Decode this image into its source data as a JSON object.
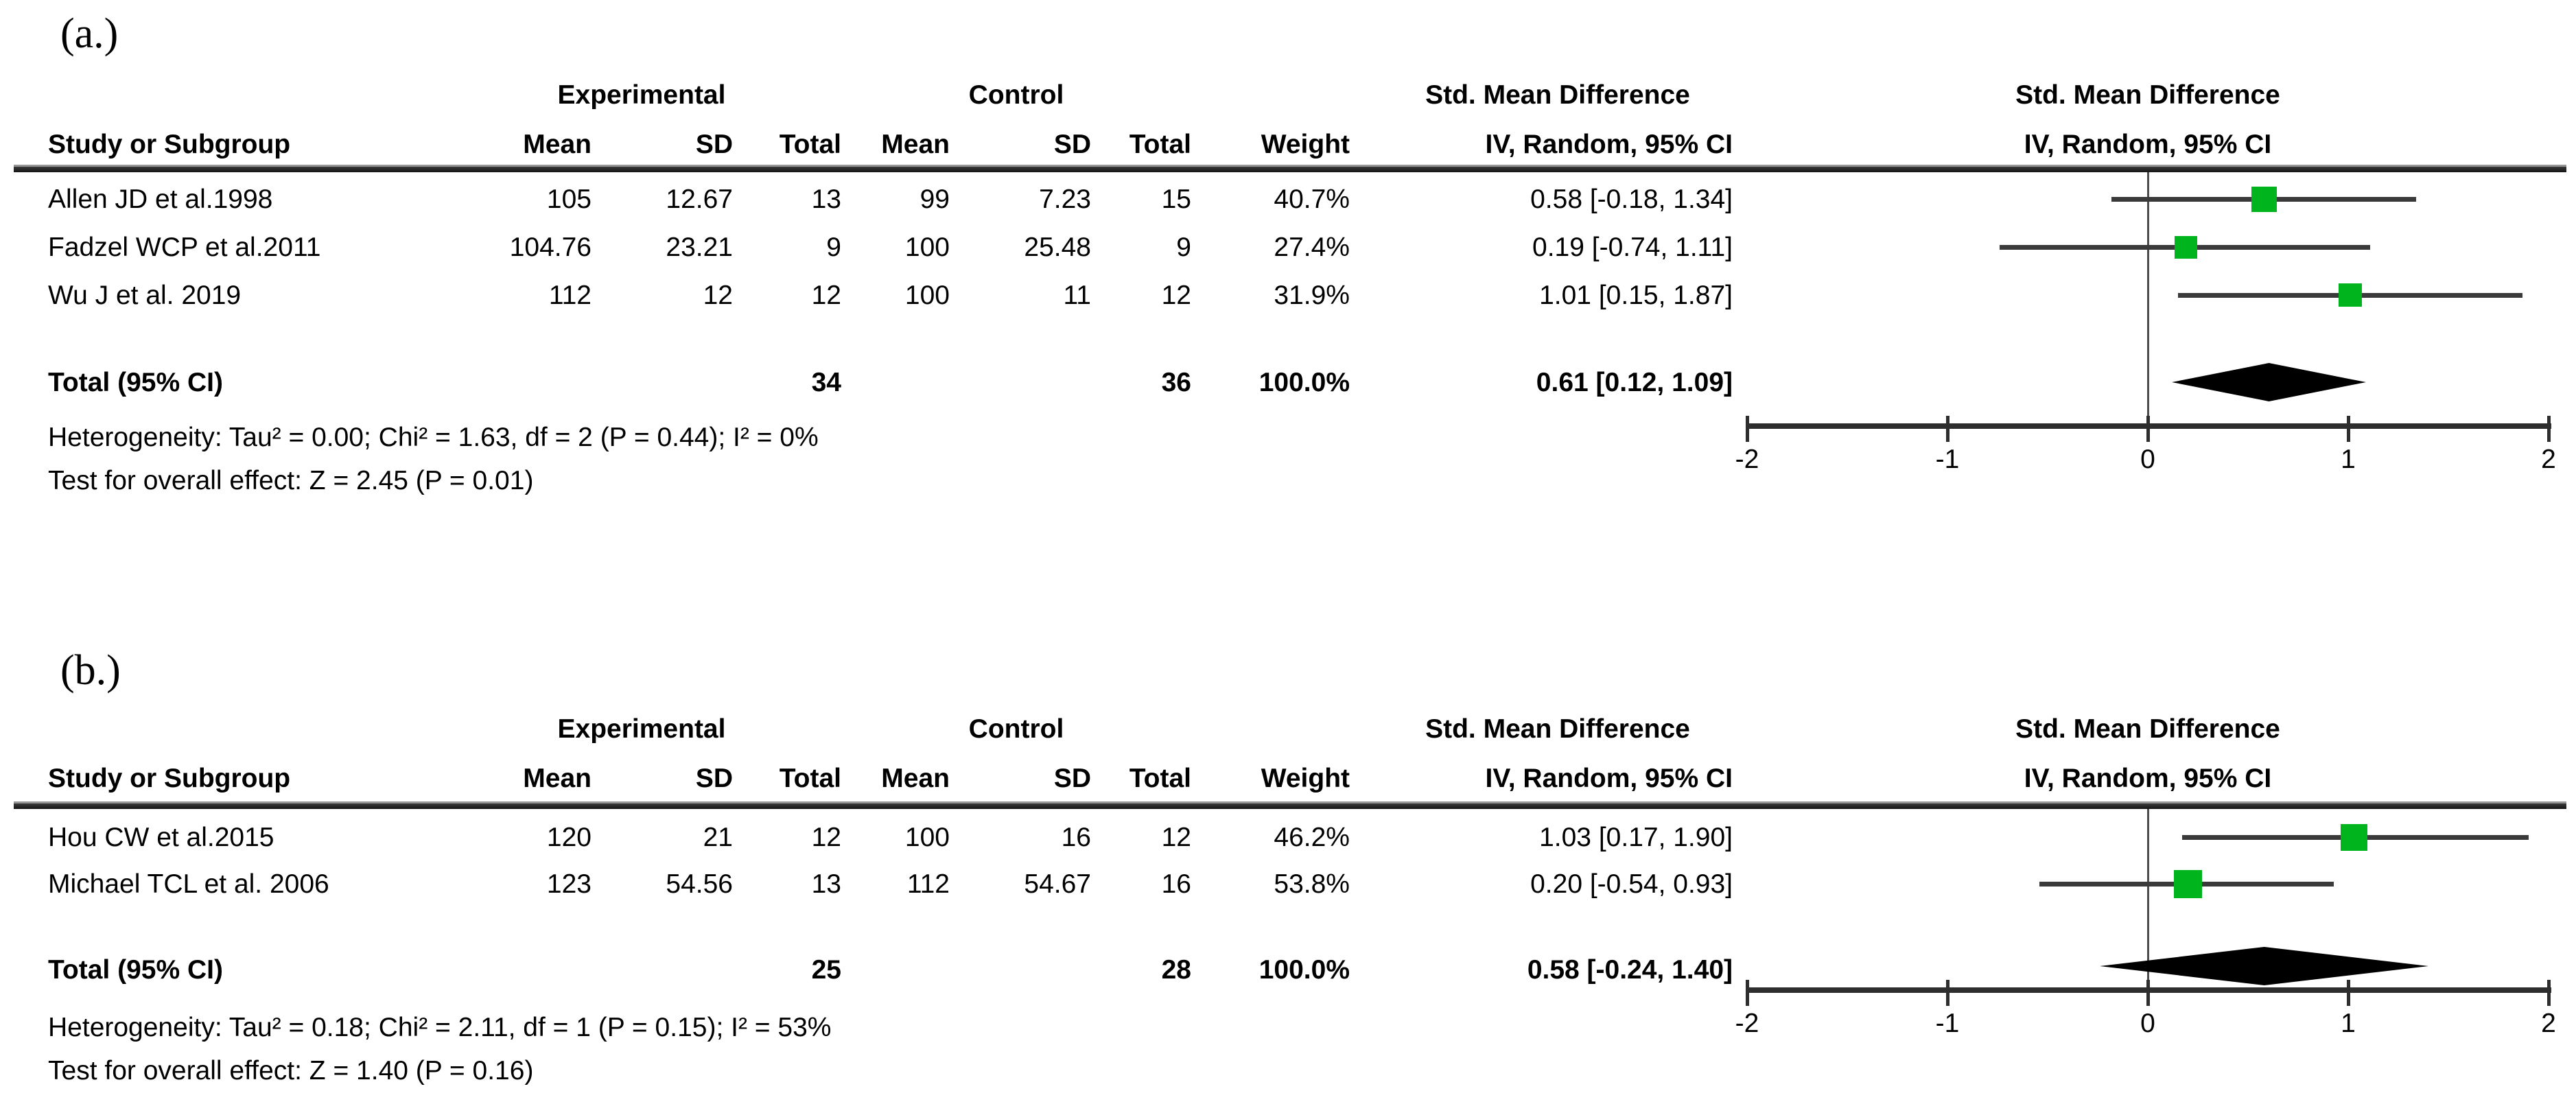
{
  "columns": {
    "study": "Study or Subgroup",
    "mean": "Mean",
    "sd": "SD",
    "total": "Total",
    "weight": "Weight",
    "iv": "IV, Random, 95% CI",
    "experimental": "Experimental",
    "control": "Control",
    "smd": "Std. Mean Difference"
  },
  "axis_ticks": [
    "-2",
    "-1",
    "0",
    "1",
    "2"
  ],
  "colors": {
    "square_green": "#00b41d",
    "diamond_black": "#000000",
    "axis_gray": "#2e2e2e"
  },
  "panels": [
    {
      "label": "(a.)",
      "studies": [
        {
          "name": "Allen JD et al.1998",
          "exp_mean": "105",
          "exp_sd": "12.67",
          "exp_total": "13",
          "ctl_mean": "99",
          "ctl_sd": "7.23",
          "ctl_total": "15",
          "weight": "40.7%",
          "ci_text": "0.58 [-0.18, 1.34]"
        },
        {
          "name": "Fadzel WCP et al.2011",
          "exp_mean": "104.76",
          "exp_sd": "23.21",
          "exp_total": "9",
          "ctl_mean": "100",
          "ctl_sd": "25.48",
          "ctl_total": "9",
          "weight": "27.4%",
          "ci_text": "0.19 [-0.74, 1.11]"
        },
        {
          "name": "Wu J et al. 2019",
          "exp_mean": "112",
          "exp_sd": "12",
          "exp_total": "12",
          "ctl_mean": "100",
          "ctl_sd": "11",
          "ctl_total": "12",
          "weight": "31.9%",
          "ci_text": "1.01 [0.15, 1.87]"
        }
      ],
      "total": {
        "label": "Total (95% CI)",
        "exp_total": "34",
        "ctl_total": "36",
        "weight": "100.0%",
        "ci_text": "0.61 [0.12, 1.09]"
      },
      "heterogeneity": "Heterogeneity: Tau² = 0.00; Chi² = 1.63, df = 2 (P = 0.44); I² = 0%",
      "overall_effect": "Test for overall effect: Z = 2.45 (P = 0.01)"
    },
    {
      "label": "(b.)",
      "studies": [
        {
          "name": "Hou CW et al.2015",
          "exp_mean": "120",
          "exp_sd": "21",
          "exp_total": "12",
          "ctl_mean": "100",
          "ctl_sd": "16",
          "ctl_total": "12",
          "weight": "46.2%",
          "ci_text": "1.03 [0.17, 1.90]"
        },
        {
          "name": "Michael TCL et al. 2006",
          "exp_mean": "123",
          "exp_sd": "54.56",
          "exp_total": "13",
          "ctl_mean": "112",
          "ctl_sd": "54.67",
          "ctl_total": "16",
          "weight": "53.8%",
          "ci_text": "0.20 [-0.54, 0.93]"
        }
      ],
      "total": {
        "label": "Total (95% CI)",
        "exp_total": "25",
        "ctl_total": "28",
        "weight": "100.0%",
        "ci_text": "0.58 [-0.24, 1.40]"
      },
      "heterogeneity": "Heterogeneity: Tau² = 0.18; Chi² = 2.11, df = 1 (P = 0.15); I² = 53%",
      "overall_effect": "Test for overall effect: Z = 1.40 (P = 0.16)"
    }
  ],
  "chart_data": [
    {
      "type": "scatter",
      "subtype": "forest_plot",
      "panel": "(a.)",
      "title": "Std. Mean Difference — IV, Random, 95% CI",
      "xlabel": "Std. Mean Difference",
      "xlim": [
        -2,
        2
      ],
      "xticks": [
        -2,
        -1,
        0,
        1,
        2
      ],
      "grid": false,
      "studies": [
        {
          "name": "Allen JD et al.1998",
          "est": 0.58,
          "ci": [
            -0.18,
            1.34
          ],
          "weight_pct": 40.7
        },
        {
          "name": "Fadzel WCP et al.2011",
          "est": 0.19,
          "ci": [
            -0.74,
            1.11
          ],
          "weight_pct": 27.4
        },
        {
          "name": "Wu J et al. 2019",
          "est": 1.01,
          "ci": [
            0.15,
            1.87
          ],
          "weight_pct": 31.9
        }
      ],
      "total": {
        "est": 0.61,
        "ci": [
          0.12,
          1.09
        ],
        "exp_n": 34,
        "ctl_n": 36,
        "weight_pct": 100.0
      },
      "heterogeneity": {
        "tau2": 0.0,
        "chi2": 1.63,
        "df": 2,
        "p": 0.44,
        "i2_pct": 0
      },
      "overall_effect": {
        "z": 2.45,
        "p": 0.01
      },
      "marker_color": "#00b41d",
      "diamond_color": "#000000"
    },
    {
      "type": "scatter",
      "subtype": "forest_plot",
      "panel": "(b.)",
      "title": "Std. Mean Difference — IV, Random, 95% CI",
      "xlabel": "Std. Mean Difference",
      "xlim": [
        -2,
        2
      ],
      "xticks": [
        -2,
        -1,
        0,
        1,
        2
      ],
      "grid": false,
      "studies": [
        {
          "name": "Hou CW et al.2015",
          "est": 1.03,
          "ci": [
            0.17,
            1.9
          ],
          "weight_pct": 46.2
        },
        {
          "name": "Michael TCL et al. 2006",
          "est": 0.2,
          "ci": [
            -0.54,
            0.93
          ],
          "weight_pct": 53.8
        }
      ],
      "total": {
        "est": 0.58,
        "ci": [
          -0.24,
          1.4
        ],
        "exp_n": 25,
        "ctl_n": 28,
        "weight_pct": 100.0
      },
      "heterogeneity": {
        "tau2": 0.18,
        "chi2": 2.11,
        "df": 1,
        "p": 0.15,
        "i2_pct": 53
      },
      "overall_effect": {
        "z": 1.4,
        "p": 0.16
      },
      "marker_color": "#00b41d",
      "diamond_color": "#000000"
    }
  ]
}
